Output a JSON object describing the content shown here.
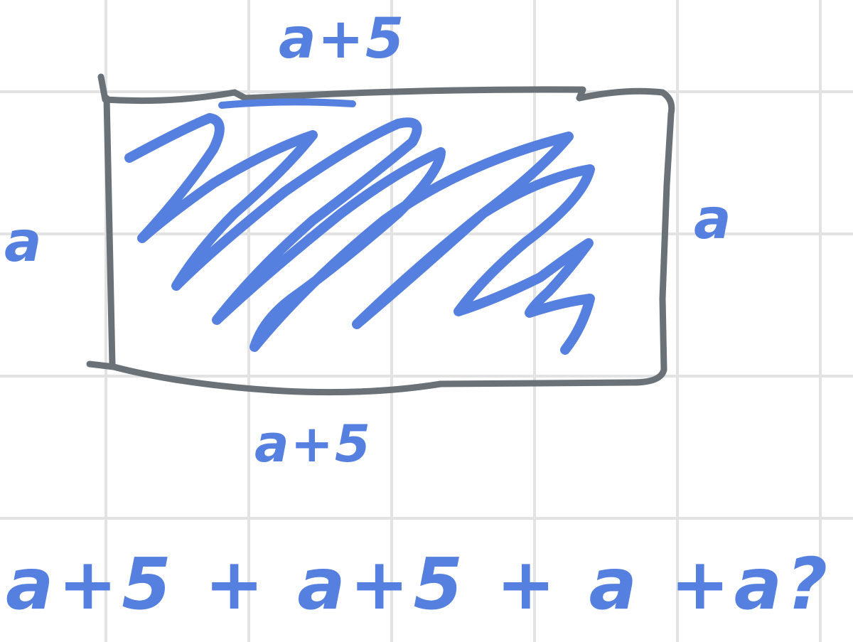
{
  "labels": {
    "top_side": "a+5",
    "bottom_side": "a+5",
    "left_side": "a",
    "right_side": "a",
    "equation": "a+5 + a+5 + a +a?"
  },
  "colors": {
    "ink_blue": "#5680e0",
    "ink_gray": "#6a7177",
    "grid": "#e3e3e3",
    "background": "#ffffff"
  }
}
